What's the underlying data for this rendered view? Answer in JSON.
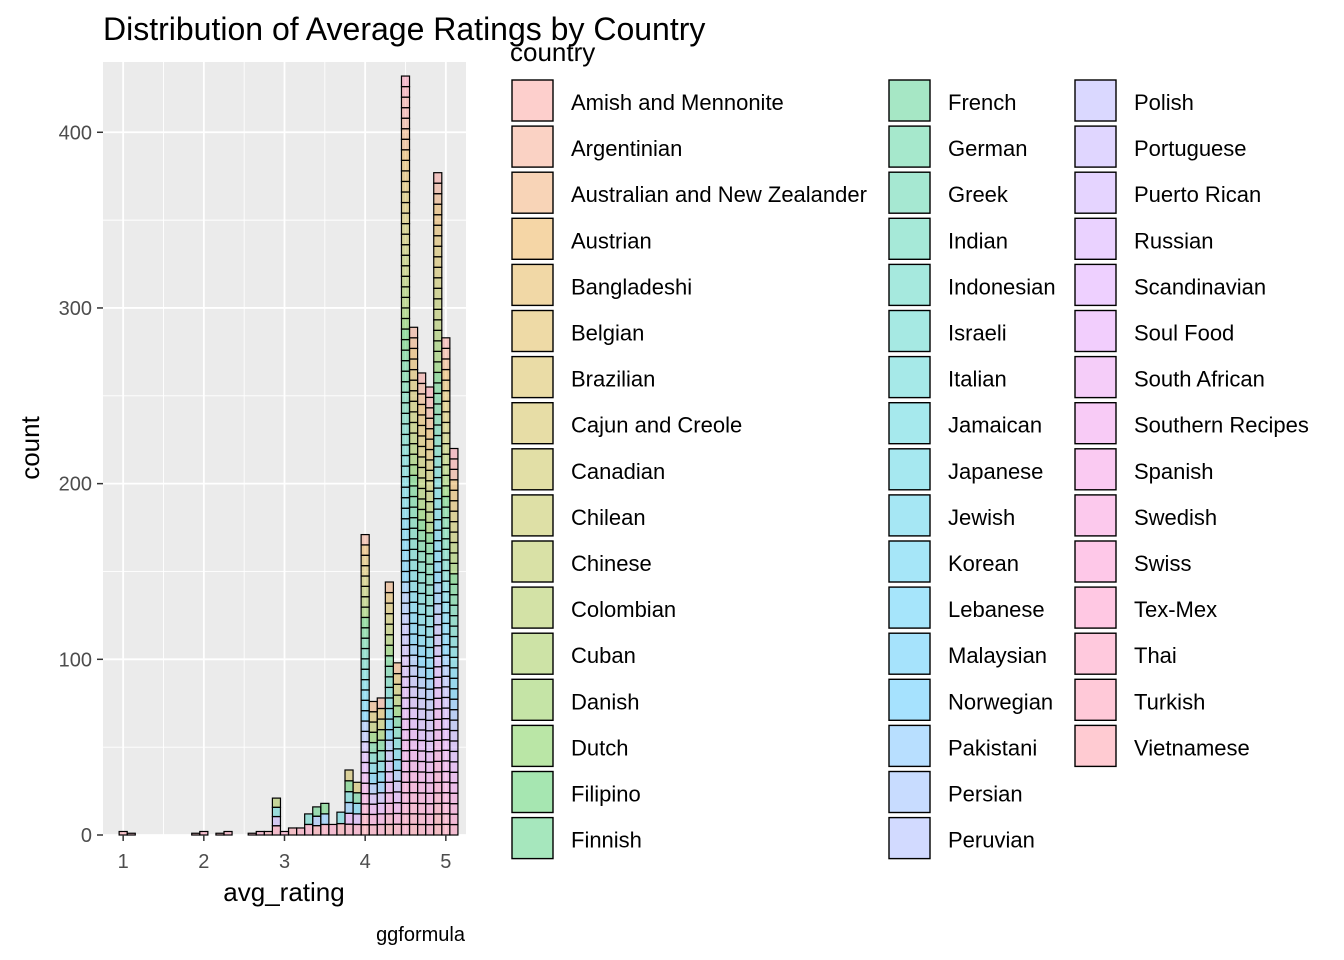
{
  "chart_data": {
    "type": "bar",
    "title": "Distribution of Average Ratings by Country",
    "xlabel": "avg_rating",
    "ylabel": "count",
    "caption": "ggformula",
    "xlim": [
      0.75,
      5.25
    ],
    "ylim": [
      0,
      440
    ],
    "x_ticks": [
      1,
      2,
      3,
      4,
      5
    ],
    "y_ticks": [
      0,
      100,
      200,
      300,
      400
    ],
    "grid": true,
    "stacked": true,
    "fill_alpha": 0.35,
    "legend": {
      "title": "country",
      "position": "right",
      "entries": [
        {
          "name": "Amish and Mennonite",
          "color": "#F8766D"
        },
        {
          "name": "Argentinian",
          "color": "#F17F55"
        },
        {
          "name": "Australian and New Zealander",
          "color": "#EA8331"
        },
        {
          "name": "Austrian",
          "color": "#E18A00"
        },
        {
          "name": "Bangladeshi",
          "color": "#D89000"
        },
        {
          "name": "Belgian",
          "color": "#CE9500"
        },
        {
          "name": "Brazilian",
          "color": "#C49A00"
        },
        {
          "name": "Cajun and Creole",
          "color": "#B99F00"
        },
        {
          "name": "Canadian",
          "color": "#ADA300"
        },
        {
          "name": "Chilean",
          "color": "#A0A600"
        },
        {
          "name": "Chinese",
          "color": "#92AA00"
        },
        {
          "name": "Colombian",
          "color": "#82AD00"
        },
        {
          "name": "Cuban",
          "color": "#6FB000"
        },
        {
          "name": "Danish",
          "color": "#58B300"
        },
        {
          "name": "Dutch",
          "color": "#39B600"
        },
        {
          "name": "Filipino",
          "color": "#00B81F"
        },
        {
          "name": "Finnish",
          "color": "#00BA42"
        },
        {
          "name": "French",
          "color": "#00BB59"
        },
        {
          "name": "German",
          "color": "#00BD6D"
        },
        {
          "name": "Greek",
          "color": "#00BE7F"
        },
        {
          "name": "Indian",
          "color": "#00BF90"
        },
        {
          "name": "Indonesian",
          "color": "#00C0A0"
        },
        {
          "name": "Israeli",
          "color": "#00C0AF"
        },
        {
          "name": "Italian",
          "color": "#00C0BD"
        },
        {
          "name": "Jamaican",
          "color": "#00BFCA"
        },
        {
          "name": "Japanese",
          "color": "#00BDD5"
        },
        {
          "name": "Jewish",
          "color": "#00BBE0"
        },
        {
          "name": "Korean",
          "color": "#00B8EA"
        },
        {
          "name": "Lebanese",
          "color": "#00B4F3"
        },
        {
          "name": "Malaysian",
          "color": "#00B0F6"
        },
        {
          "name": "Norwegian",
          "color": "#00ABFD"
        },
        {
          "name": "Pakistani",
          "color": "#35A2FF"
        },
        {
          "name": "Persian",
          "color": "#619CFF"
        },
        {
          "name": "Peruvian",
          "color": "#7D96FF"
        },
        {
          "name": "Polish",
          "color": "#9590FF"
        },
        {
          "name": "Portuguese",
          "color": "#A68AFF"
        },
        {
          "name": "Puerto Rican",
          "color": "#B584FF"
        },
        {
          "name": "Russian",
          "color": "#C27FFF"
        },
        {
          "name": "Scandinavian",
          "color": "#CE79FF"
        },
        {
          "name": "Soul Food",
          "color": "#D974F8"
        },
        {
          "name": "South African",
          "color": "#E36FEF"
        },
        {
          "name": "Southern Recipes",
          "color": "#EB6AE5"
        },
        {
          "name": "Spanish",
          "color": "#F266D9"
        },
        {
          "name": "Swedish",
          "color": "#F764CC"
        },
        {
          "name": "Swiss",
          "color": "#FB62BE"
        },
        {
          "name": "Tex-Mex",
          "color": "#FE62AF"
        },
        {
          "name": "Thai",
          "color": "#FF639F"
        },
        {
          "name": "Turkish",
          "color": "#FF658E"
        },
        {
          "name": "Vietnamese",
          "color": "#FF6A7D"
        }
      ]
    },
    "bars": [
      {
        "x": 1.0,
        "count": 2
      },
      {
        "x": 1.1,
        "count": 1
      },
      {
        "x": 1.2,
        "count": 0
      },
      {
        "x": 1.3,
        "count": 0
      },
      {
        "x": 1.4,
        "count": 0
      },
      {
        "x": 1.5,
        "count": 0
      },
      {
        "x": 1.6,
        "count": 0
      },
      {
        "x": 1.7,
        "count": 0
      },
      {
        "x": 1.8,
        "count": 0
      },
      {
        "x": 1.9,
        "count": 1
      },
      {
        "x": 2.0,
        "count": 2
      },
      {
        "x": 2.1,
        "count": 0
      },
      {
        "x": 2.2,
        "count": 1
      },
      {
        "x": 2.3,
        "count": 2
      },
      {
        "x": 2.4,
        "count": 0
      },
      {
        "x": 2.5,
        "count": 0
      },
      {
        "x": 2.6,
        "count": 1
      },
      {
        "x": 2.7,
        "count": 2
      },
      {
        "x": 2.8,
        "count": 2
      },
      {
        "x": 2.9,
        "count": 21
      },
      {
        "x": 3.0,
        "count": 2
      },
      {
        "x": 3.1,
        "count": 4
      },
      {
        "x": 3.2,
        "count": 4
      },
      {
        "x": 3.3,
        "count": 12
      },
      {
        "x": 3.4,
        "count": 16
      },
      {
        "x": 3.5,
        "count": 18
      },
      {
        "x": 3.6,
        "count": 6
      },
      {
        "x": 3.7,
        "count": 13
      },
      {
        "x": 3.8,
        "count": 37
      },
      {
        "x": 3.9,
        "count": 30
      },
      {
        "x": 4.0,
        "count": 171
      },
      {
        "x": 4.1,
        "count": 76
      },
      {
        "x": 4.2,
        "count": 78
      },
      {
        "x": 4.3,
        "count": 144
      },
      {
        "x": 4.4,
        "count": 98
      },
      {
        "x": 4.5,
        "count": 432
      },
      {
        "x": 4.6,
        "count": 289
      },
      {
        "x": 4.7,
        "count": 263
      },
      {
        "x": 4.8,
        "count": 255
      },
      {
        "x": 4.9,
        "count": 377
      },
      {
        "x": 5.0,
        "count": 283
      },
      {
        "x": 5.1,
        "count": 220
      }
    ]
  }
}
